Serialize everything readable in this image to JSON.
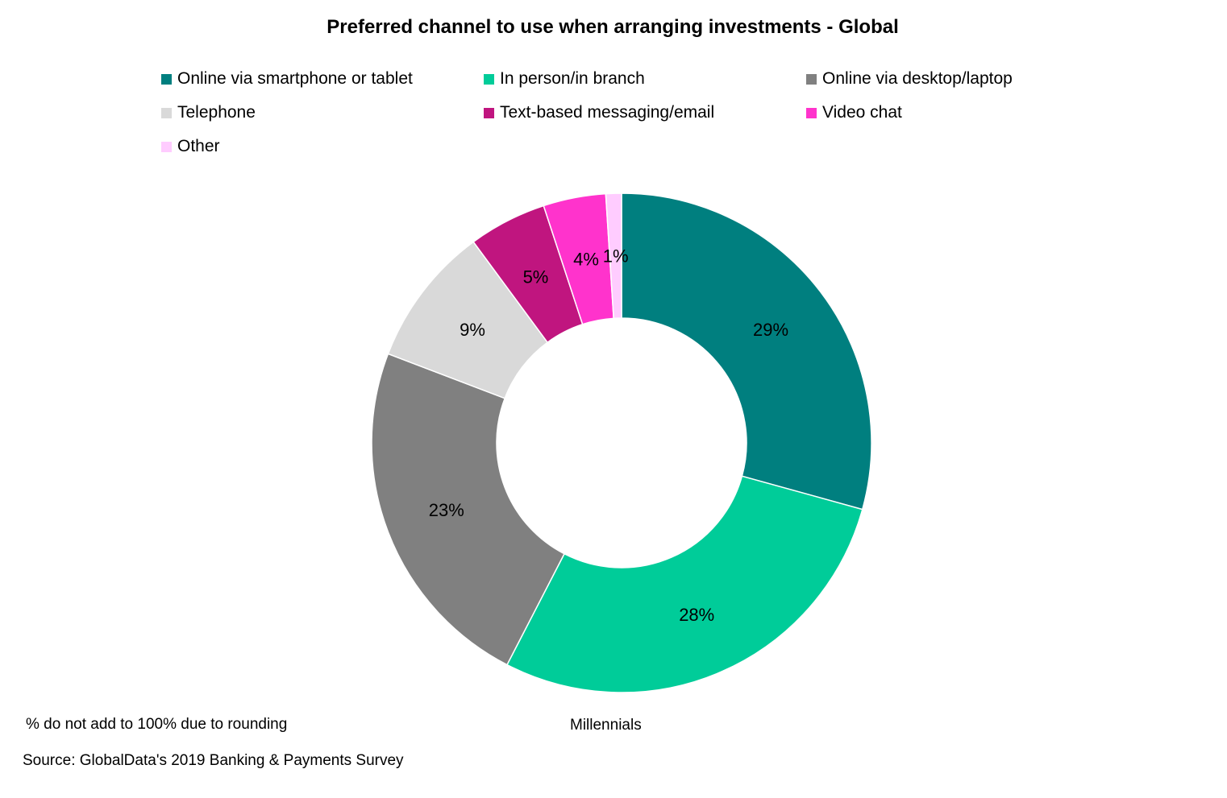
{
  "chart_data": {
    "type": "pie",
    "subtype": "donut",
    "title": "Preferred channel to use when arranging investments - Global",
    "categories": [
      "Online via smartphone or tablet",
      "In person/in branch",
      "Online via desktop/laptop",
      "Telephone",
      "Text-based messaging/email",
      "Video chat",
      "Other"
    ],
    "values": [
      29,
      28,
      23,
      9,
      5,
      4,
      1
    ],
    "data_labels": [
      "29%",
      "28%",
      "23%",
      "9%",
      "5%",
      "4%",
      "1%"
    ],
    "colors": [
      "#007F7F",
      "#00CC99",
      "#808080",
      "#D9D9D9",
      "#C0157F",
      "#FF33CC",
      "#FFCCFF"
    ],
    "series_name": "Millennials",
    "legend_position": "top"
  },
  "footnote": "% do not add to 100% due to rounding",
  "source": "Source: GlobalData's 2019 Banking & Payments Survey"
}
